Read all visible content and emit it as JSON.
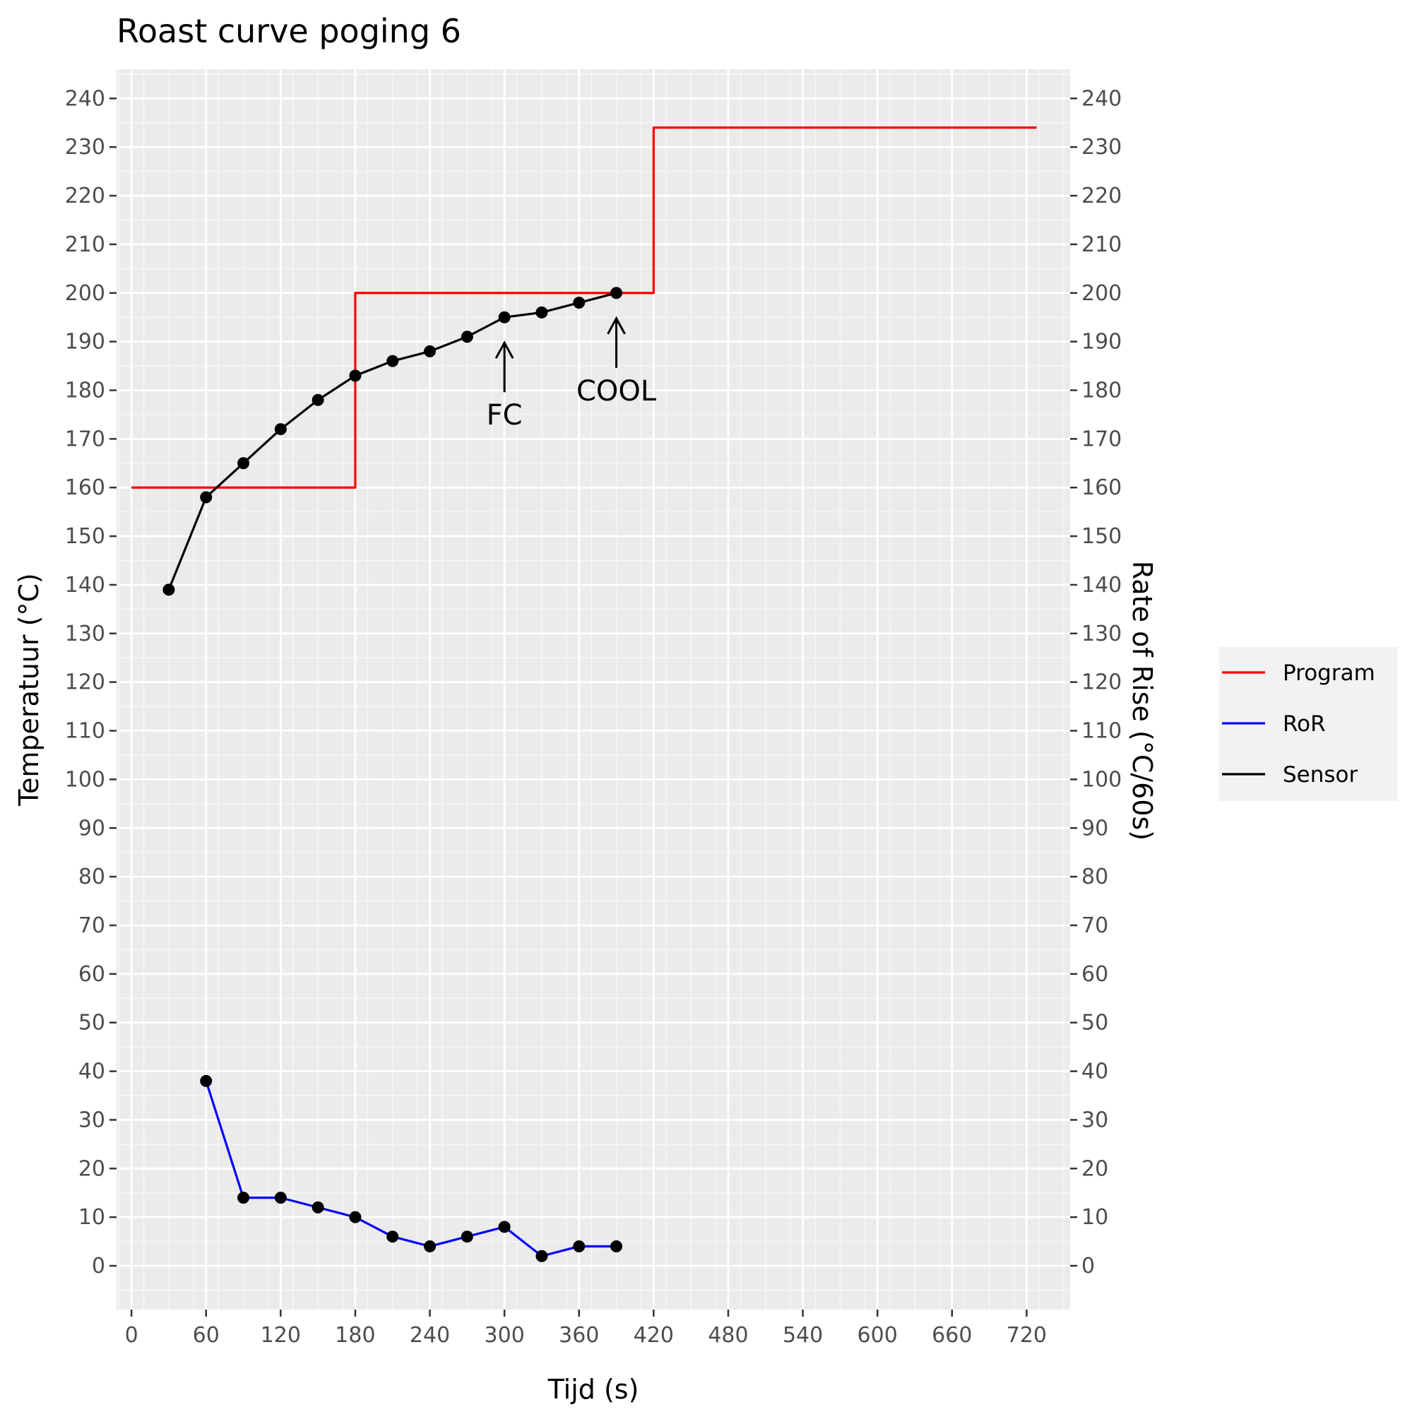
{
  "chart_data": {
    "type": "line",
    "title": "Roast curve poging 6",
    "xlabel": "Tijd (s)",
    "ylabel": "Temperatuur (°C)",
    "y2label": "Rate of Rise (°C/60s)",
    "xlim": [
      -12,
      755
    ],
    "ylim": [
      -9,
      246
    ],
    "x_ticks": [
      0,
      60,
      120,
      180,
      240,
      300,
      360,
      420,
      480,
      540,
      600,
      660,
      720
    ],
    "y_ticks": [
      0,
      10,
      20,
      30,
      40,
      50,
      60,
      70,
      80,
      90,
      100,
      110,
      120,
      130,
      140,
      150,
      160,
      170,
      180,
      190,
      200,
      210,
      220,
      230,
      240
    ],
    "grid": true,
    "legend_position": "right",
    "series": [
      {
        "name": "Program",
        "color": "#ff0000",
        "step": true,
        "points": [
          [
            0,
            160
          ],
          [
            180,
            160
          ],
          [
            180,
            200
          ],
          [
            420,
            200
          ],
          [
            420,
            234
          ],
          [
            728,
            234
          ]
        ]
      },
      {
        "name": "RoR",
        "color": "#0000ff",
        "markers": true,
        "points": [
          [
            60,
            38
          ],
          [
            90,
            14
          ],
          [
            120,
            14
          ],
          [
            150,
            12
          ],
          [
            180,
            10
          ],
          [
            210,
            6
          ],
          [
            240,
            4
          ],
          [
            270,
            6
          ],
          [
            300,
            8
          ],
          [
            330,
            2
          ],
          [
            360,
            4
          ],
          [
            390,
            4
          ]
        ]
      },
      {
        "name": "Sensor",
        "color": "#000000",
        "markers": true,
        "points": [
          [
            30,
            139
          ],
          [
            60,
            158
          ],
          [
            90,
            165
          ],
          [
            120,
            172
          ],
          [
            150,
            178
          ],
          [
            180,
            183
          ],
          [
            210,
            186
          ],
          [
            240,
            188
          ],
          [
            270,
            191
          ],
          [
            300,
            195
          ],
          [
            330,
            196
          ],
          [
            360,
            198
          ],
          [
            390,
            200
          ]
        ]
      }
    ],
    "annotations": [
      {
        "text": "FC",
        "x": 300,
        "y": 195
      },
      {
        "text": "COOL",
        "x": 390,
        "y": 200
      }
    ],
    "legend": [
      "Program",
      "RoR",
      "Sensor"
    ]
  }
}
